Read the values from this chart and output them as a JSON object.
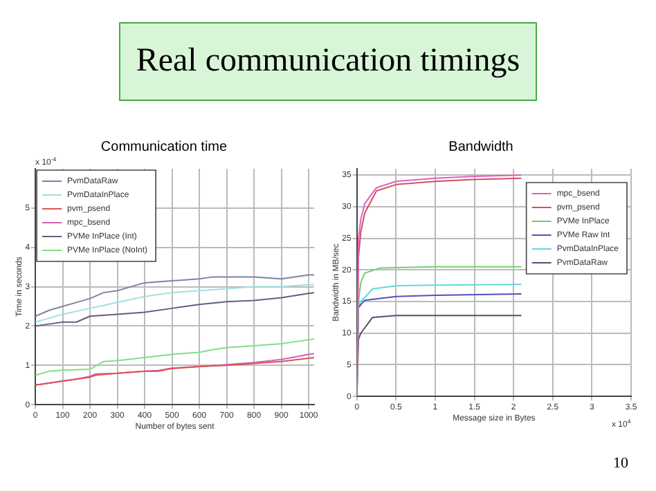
{
  "chart_data": [
    {
      "type": "other",
      "title": "Real communication timings",
      "annotations": [
        "10"
      ]
    },
    {
      "type": "line",
      "title": "Communication time",
      "xlabel": "Number of bytes sent",
      "ylabel": "Time in seconds",
      "annotations": [
        "x 10$^{-4}$"
      ],
      "xlim": [
        0,
        1020
      ],
      "xticks": [
        0,
        100,
        200,
        300,
        400,
        500,
        600,
        700,
        800,
        900,
        1000
      ],
      "ylim": [
        0,
        6
      ],
      "yticks": [
        0,
        1,
        2,
        3,
        4,
        5
      ],
      "grid": true,
      "legend": "top left",
      "marker": "none",
      "line_style": "solid",
      "series": [
        {
          "name": "PvmDataRaw",
          "color": "#8080a8",
          "x": [
            0,
            50,
            100,
            150,
            200,
            250,
            300,
            350,
            400,
            500,
            600,
            650,
            700,
            800,
            900,
            1000,
            1020
          ],
          "values": [
            2.25,
            2.4,
            2.5,
            2.6,
            2.7,
            2.85,
            2.9,
            3.0,
            3.1,
            3.15,
            3.2,
            3.25,
            3.25,
            3.25,
            3.2,
            3.3,
            3.3
          ]
        },
        {
          "name": "PvmDataInPlace",
          "color": "#a0e0e0",
          "x": [
            0,
            50,
            100,
            200,
            300,
            400,
            500,
            600,
            700,
            800,
            900,
            1000,
            1020
          ],
          "values": [
            2.1,
            2.2,
            2.3,
            2.45,
            2.6,
            2.75,
            2.85,
            2.9,
            2.95,
            3.0,
            3.0,
            3.05,
            3.05
          ]
        },
        {
          "name": "pvm_psend",
          "color": "#e05050",
          "x": [
            0,
            50,
            100,
            150,
            200,
            220,
            300,
            400,
            450,
            500,
            600,
            700,
            800,
            900,
            1000,
            1020
          ],
          "values": [
            0.5,
            0.55,
            0.6,
            0.65,
            0.7,
            0.75,
            0.8,
            0.85,
            0.85,
            0.92,
            0.97,
            1.0,
            1.05,
            1.1,
            1.18,
            1.2
          ]
        },
        {
          "name": "mpc_bsend",
          "color": "#d060c0",
          "x": [
            0,
            50,
            100,
            150,
            200,
            220,
            300,
            400,
            450,
            500,
            600,
            700,
            800,
            900,
            1000,
            1020
          ],
          "values": [
            0.5,
            0.55,
            0.6,
            0.65,
            0.72,
            0.78,
            0.8,
            0.85,
            0.87,
            0.93,
            0.97,
            1.02,
            1.07,
            1.15,
            1.28,
            1.3
          ]
        },
        {
          "name": "PVMe InPlace (Int)",
          "color": "#606080",
          "x": [
            0,
            50,
            100,
            150,
            200,
            300,
            400,
            500,
            600,
            700,
            800,
            900,
            1000,
            1020
          ],
          "values": [
            2.0,
            2.05,
            2.1,
            2.1,
            2.25,
            2.3,
            2.35,
            2.45,
            2.55,
            2.62,
            2.65,
            2.72,
            2.83,
            2.85
          ]
        },
        {
          "name": "PVMe InPlace (NoInt)",
          "color": "#80e080",
          "x": [
            0,
            50,
            100,
            200,
            250,
            300,
            400,
            500,
            600,
            650,
            700,
            800,
            900,
            1000,
            1020
          ],
          "values": [
            0.75,
            0.85,
            0.88,
            0.9,
            1.1,
            1.12,
            1.2,
            1.28,
            1.33,
            1.4,
            1.45,
            1.5,
            1.55,
            1.65,
            1.67
          ]
        }
      ]
    },
    {
      "type": "line",
      "title": "Bandwidth",
      "xlabel": "Message size in Bytes",
      "ylabel": "Bandwidth in MB/sec",
      "annotations": [
        "x 10$^{4}$"
      ],
      "xlim": [
        0,
        3.5
      ],
      "xticks": [
        0,
        0.5,
        1,
        1.5,
        2,
        2.5,
        3,
        3.5
      ],
      "ylim": [
        0,
        36
      ],
      "yticks": [
        0,
        5,
        10,
        15,
        20,
        25,
        30,
        35
      ],
      "grid": true,
      "legend": "top right",
      "marker": "none",
      "line_style": "solid",
      "series": [
        {
          "name": "mpc_bsend",
          "color": "#e060c0",
          "x": [
            0,
            0.02,
            0.05,
            0.1,
            0.25,
            0.5,
            1,
            1.5,
            2.1
          ],
          "values": [
            0,
            25,
            28,
            30.5,
            33,
            34,
            34.5,
            34.8,
            35
          ]
        },
        {
          "name": "pvm_psend",
          "color": "#d05060",
          "x": [
            0,
            0.02,
            0.05,
            0.1,
            0.25,
            0.5,
            1,
            1.5,
            2.1
          ],
          "values": [
            0,
            22,
            26,
            29,
            32.5,
            33.5,
            34,
            34.3,
            34.5
          ]
        },
        {
          "name": "PVMe InPlace",
          "color": "#70d070",
          "x": [
            0,
            0.02,
            0.05,
            0.1,
            0.3,
            1,
            2.1
          ],
          "values": [
            0,
            15,
            18,
            19.5,
            20.3,
            20.5,
            20.5
          ]
        },
        {
          "name": "PVMe Raw Int",
          "color": "#5050c0",
          "x": [
            0,
            0.02,
            0.05,
            0.1,
            0.5,
            1,
            2.1
          ],
          "values": [
            0,
            14,
            14.5,
            15.2,
            15.8,
            16,
            16.2
          ]
        },
        {
          "name": "PvmDataInPlace",
          "color": "#60d8e0",
          "x": [
            0,
            0.02,
            0.05,
            0.2,
            0.5,
            1,
            2.1
          ],
          "values": [
            0,
            14,
            15,
            17,
            17.5,
            17.6,
            17.7
          ]
        },
        {
          "name": "PvmDataRaw",
          "color": "#505070",
          "x": [
            0,
            0.02,
            0.05,
            0.2,
            0.5,
            1,
            2.1
          ],
          "values": [
            0,
            9,
            10,
            12.5,
            12.8,
            12.8,
            12.8
          ]
        }
      ]
    }
  ]
}
